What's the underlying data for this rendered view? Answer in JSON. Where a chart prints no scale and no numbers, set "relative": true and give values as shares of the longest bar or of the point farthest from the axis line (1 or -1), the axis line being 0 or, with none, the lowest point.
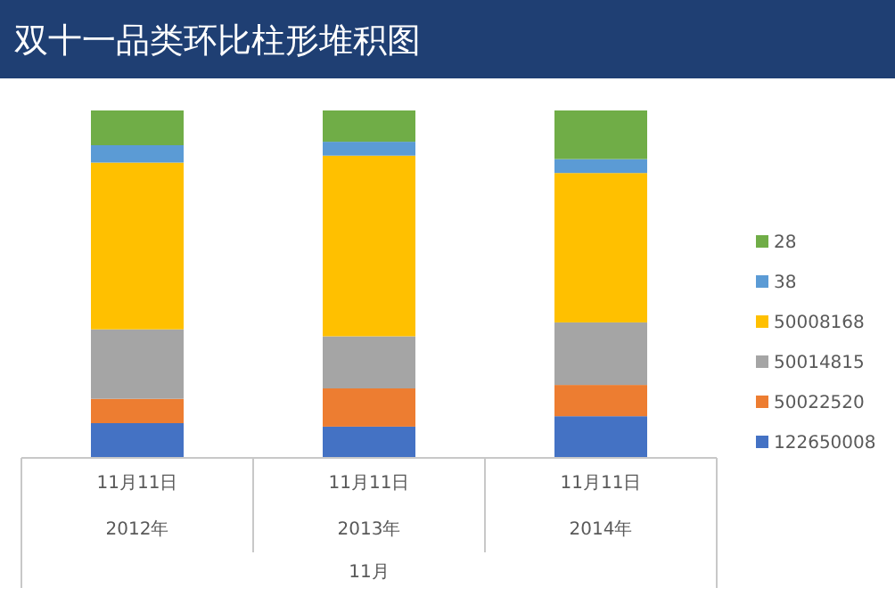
{
  "chart_data": {
    "type": "bar",
    "title": "双十一品类环比柱形堆积图",
    "categories": [
      "11月11日",
      "11月11日",
      "11月11日"
    ],
    "stacked": true,
    "relative": true,
    "legend": "right",
    "grid": false,
    "series": [
      {
        "name": "122650008",
        "color": "#4472c4",
        "values": [
          0.1,
          0.09,
          0.12
        ]
      },
      {
        "name": "50022520",
        "color": "#ed7d31",
        "values": [
          0.07,
          0.11,
          0.09
        ]
      },
      {
        "name": "50014815",
        "color": "#a5a5a5",
        "values": [
          0.2,
          0.15,
          0.18
        ]
      },
      {
        "name": "50008168",
        "color": "#ffc000",
        "values": [
          0.48,
          0.52,
          0.43
        ]
      },
      {
        "name": "38",
        "color": "#5b9bd5",
        "values": [
          0.05,
          0.04,
          0.04
        ]
      },
      {
        "name": "28",
        "color": "#70ad47",
        "values": [
          0.1,
          0.09,
          0.14
        ]
      }
    ],
    "annotations": [
      "2012年",
      "2013年",
      "2014年",
      "11月"
    ]
  }
}
